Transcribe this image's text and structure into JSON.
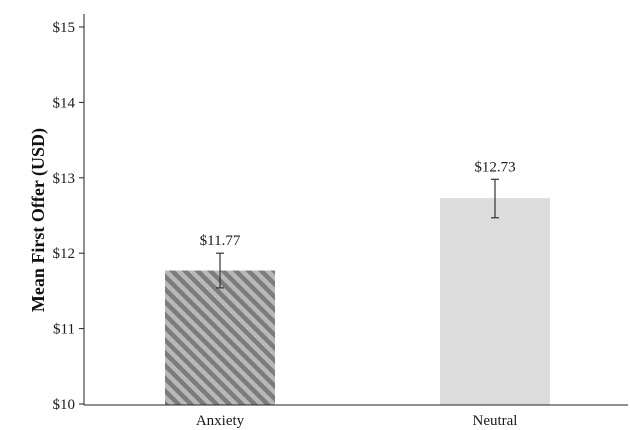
{
  "chart_data": {
    "type": "bar",
    "ylabel": "Mean First Offer (USD)",
    "xlabel": "",
    "ylim": [
      10,
      15.2
    ],
    "yticks": [
      {
        "value": 10,
        "label": "$10"
      },
      {
        "value": 11,
        "label": "$11"
      },
      {
        "value": 12,
        "label": "$12"
      },
      {
        "value": 13,
        "label": "$13"
      },
      {
        "value": 14,
        "label": "$14"
      },
      {
        "value": 15,
        "label": "$15"
      }
    ],
    "grid": false,
    "bars": [
      {
        "category": "Anxiety",
        "value": 11.77,
        "label": "$11.77",
        "error_low": 11.54,
        "error_high": 12.0,
        "color": "#8c8c8c",
        "pattern": "hatched"
      },
      {
        "category": "Neutral",
        "value": 12.73,
        "label": "$12.73",
        "error_low": 12.47,
        "error_high": 12.98,
        "color": "#dcdcdc",
        "pattern": "solid"
      }
    ]
  }
}
